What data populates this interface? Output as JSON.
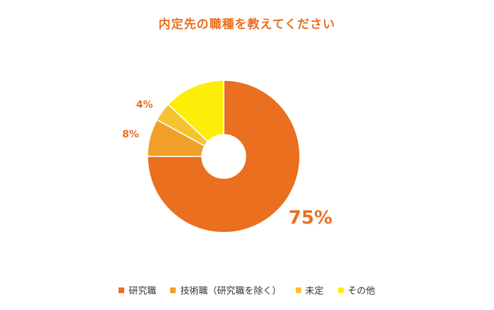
{
  "chart_data": {
    "type": "pie",
    "donut": true,
    "title": "内定先の職種を教えてください",
    "categories": [
      "研究職",
      "技術職（研究職を除く）",
      "未定",
      "その他"
    ],
    "values": [
      75,
      8,
      4,
      13
    ],
    "data_labels": [
      "75%",
      "8%",
      "4%",
      ""
    ],
    "colors": [
      "#ea6f1e",
      "#f0a028",
      "#f6c330",
      "#fdee0a"
    ],
    "label_color": "#ea6f1e",
    "legend": "bottom"
  }
}
